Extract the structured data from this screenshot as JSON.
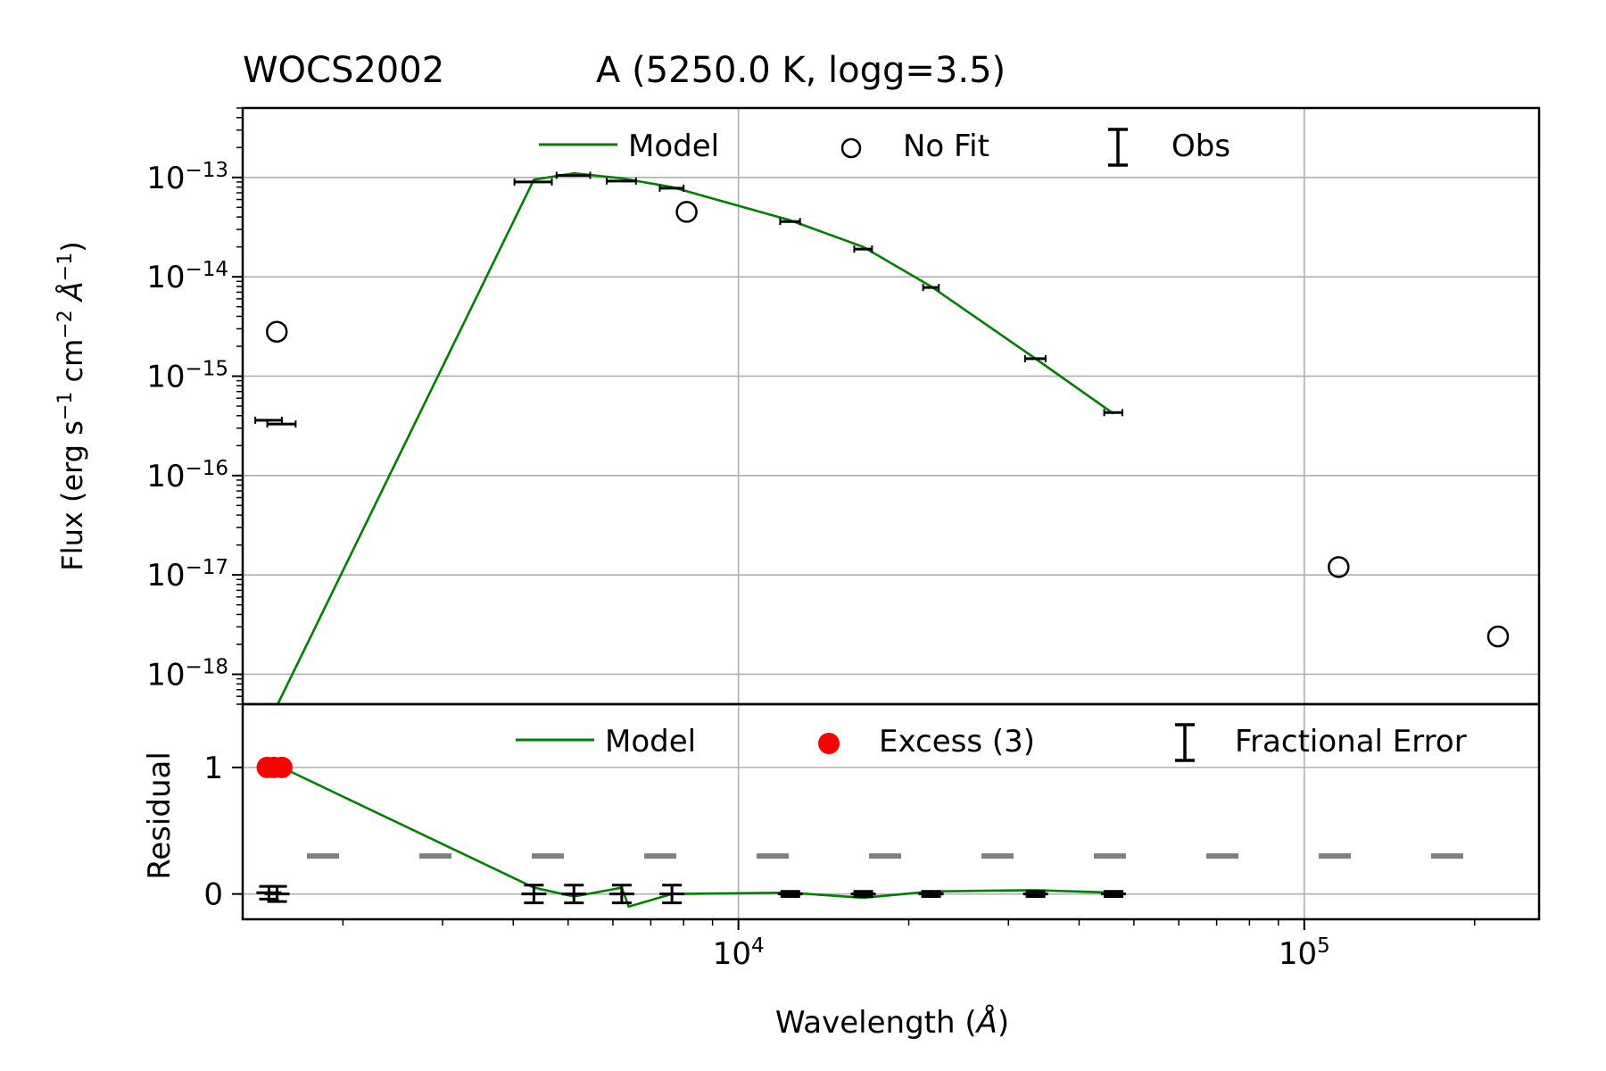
{
  "title": {
    "star": "WOCS2002",
    "component": "A (5250.0 K, logg=3.5)"
  },
  "chart_data": [
    {
      "panel": "sed",
      "type": "scatter",
      "xscale": "log",
      "yscale": "log",
      "xlim": [
        1330,
        260000
      ],
      "ylim": [
        5e-19,
        5e-13
      ],
      "ylabel": "Flux (erg s$^{-1}$ cm$^{-2}$ $\\AA^{-1}$)",
      "ylabel_parts": {
        "pre": "Flux (erg s",
        "sup1": "−1",
        "mid1": " cm",
        "sup2": "−2",
        "mid2": " Å",
        "sup3": "−1",
        "post": ")"
      },
      "yticks": [
        {
          "value": 1e-13,
          "base": "10",
          "exp": "−13"
        },
        {
          "value": 1e-14,
          "base": "10",
          "exp": "−14"
        },
        {
          "value": 1e-15,
          "base": "10",
          "exp": "−15"
        },
        {
          "value": 1e-16,
          "base": "10",
          "exp": "−16"
        },
        {
          "value": 1e-17,
          "base": "10",
          "exp": "−17"
        },
        {
          "value": 1e-18,
          "base": "10",
          "exp": "−18"
        }
      ],
      "grid": true,
      "legend_placement": "top-center",
      "legend": {
        "model": "Model",
        "nofit": "No Fit",
        "obs": "Obs"
      },
      "series": [
        {
          "name": "Model",
          "color": "#008000",
          "x": [
            1520,
            4350,
            5120,
            6220,
            7630,
            12350,
            16620,
            21900,
            33500,
            46000
          ],
          "y": [
            4.5e-19,
            9.5e-14,
            1.1e-13,
            9.8e-14,
            8e-14,
            3.7e-14,
            2e-14,
            8e-15,
            1.5e-15,
            4.2e-16
          ]
        },
        {
          "name": "Obs",
          "color": "#000000",
          "x": [
            1480,
            1560,
            4350,
            5120,
            6220,
            7630,
            12350,
            16620,
            21900,
            33500,
            46000
          ],
          "y": [
            3.6e-16,
            3.3e-16,
            9e-14,
            1.05e-13,
            9.2e-14,
            7.8e-14,
            3.6e-14,
            1.9e-14,
            7.8e-15,
            1.5e-15,
            4.3e-16
          ],
          "xerr": [
            [
              80,
              80
            ],
            [
              90,
              90
            ],
            [
              330,
              330
            ],
            [
              350,
              350
            ],
            [
              370,
              370
            ],
            [
              370,
              370
            ],
            [
              500,
              500
            ],
            [
              600,
              600
            ],
            [
              700,
              700
            ],
            [
              1400,
              1400
            ],
            [
              1700,
              1700
            ]
          ]
        },
        {
          "name": "No Fit",
          "color": "#000000",
          "x": [
            1528,
            8100,
            115000,
            220000
          ],
          "y": [
            2.8e-15,
            4.5e-14,
            1.2e-17,
            2.4e-18
          ]
        }
      ]
    },
    {
      "panel": "residual",
      "type": "scatter",
      "xscale": "log",
      "xlim": [
        1330,
        260000
      ],
      "ylim": [
        -0.2,
        1.5
      ],
      "xlabel": "Wavelength (Å)",
      "ylabel": "Residual",
      "yticks": [
        {
          "value": 0,
          "label": "0"
        },
        {
          "value": 1,
          "label": "1"
        }
      ],
      "xticks": [
        {
          "value": 10000,
          "base": "10",
          "exp": "4"
        },
        {
          "value": 100000,
          "base": "10",
          "exp": "5"
        }
      ],
      "grid": true,
      "legend_placement": "top-right",
      "legend": {
        "model": "Model",
        "excess": "Excess (3)",
        "fracerr": "Fractional Error"
      },
      "threshold": {
        "value": 0.3,
        "style": "dashed",
        "color": "#808080"
      },
      "series": [
        {
          "name": "Model",
          "color": "#008000",
          "x": [
            1560,
            4350,
            5120,
            6220,
            6400,
            7630,
            12350,
            16620,
            21900,
            33500,
            46000
          ],
          "y": [
            1.0,
            0.05,
            -0.02,
            0.05,
            -0.1,
            0.0,
            0.01,
            -0.03,
            0.02,
            0.03,
            0.01
          ]
        },
        {
          "name": "Excess (3)",
          "color": "#ff0000",
          "x": [
            1470,
            1510,
            1560
          ],
          "y": [
            1.0,
            1.0,
            1.0
          ]
        },
        {
          "name": "Fractional Error",
          "color": "#000000",
          "x": [
            1480,
            1530,
            4350,
            5120,
            6220,
            7630,
            12350,
            16620,
            21900,
            33500,
            46000
          ],
          "y": [
            0.01,
            0.0,
            0.0,
            0.0,
            0.0,
            0.0,
            0.0,
            0.0,
            0.0,
            0.0,
            0.0
          ],
          "yerr": [
            0.05,
            0.06,
            0.07,
            0.07,
            0.07,
            0.07,
            0.02,
            0.02,
            0.02,
            0.02,
            0.02
          ]
        }
      ]
    }
  ]
}
